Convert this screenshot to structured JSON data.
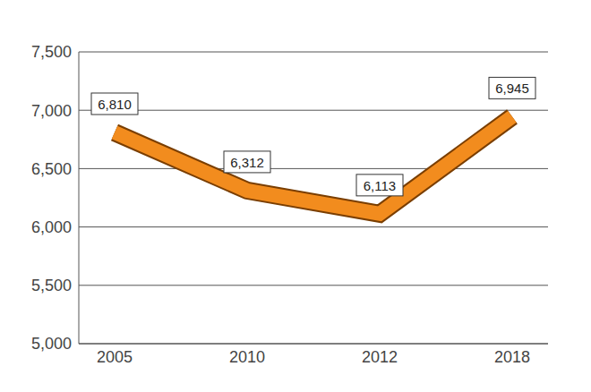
{
  "chart_data": {
    "type": "line",
    "categories": [
      "2005",
      "2010",
      "2012",
      "2018"
    ],
    "values": [
      6810,
      6312,
      6113,
      6945
    ],
    "value_labels": [
      "6,810",
      "6,312",
      "6,113",
      "6,945"
    ],
    "color": "#f28c1e",
    "ylim": [
      5000,
      7500
    ],
    "yticks": [
      {
        "value": 5000,
        "label": "5,000"
      },
      {
        "value": 5500,
        "label": "5,500"
      },
      {
        "value": 6000,
        "label": "6,000"
      },
      {
        "value": 6500,
        "label": "6,500"
      },
      {
        "value": 7000,
        "label": "7,000"
      },
      {
        "value": 7500,
        "label": "7,500"
      }
    ],
    "grid": true,
    "data_labels": true
  }
}
